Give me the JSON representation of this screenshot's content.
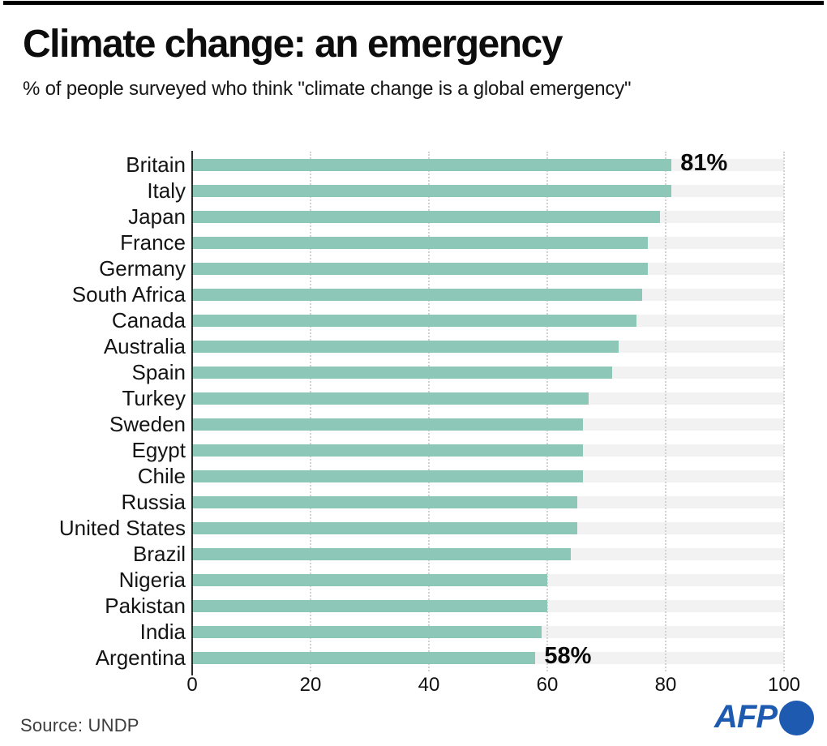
{
  "page": {
    "top_bar_color": "#000000",
    "background": "#ffffff"
  },
  "header": {
    "title": "Climate change: an emergency",
    "subtitle": "% of people surveyed who think \"climate change is a global emergency\""
  },
  "chart_data": {
    "type": "bar",
    "orientation": "horizontal",
    "title": "Climate change: an emergency",
    "subtitle": "% of people surveyed who think \"climate change is a global emergency\"",
    "xlabel": "",
    "ylabel": "",
    "xlim": [
      0,
      100
    ],
    "xticks": [
      "0",
      "20",
      "40",
      "60",
      "80",
      "100"
    ],
    "grid": "vertical-dotted",
    "legend": "none",
    "bar_color": "#8dc7b7",
    "track_color": "#f2f2f2",
    "categories": [
      "Britain",
      "Italy",
      "Japan",
      "France",
      "Germany",
      "South Africa",
      "Canada",
      "Australia",
      "Spain",
      "Turkey",
      "Sweden",
      "Egypt",
      "Chile",
      "Russia",
      "United States",
      "Brazil",
      "Nigeria",
      "Pakistan",
      "India",
      "Argentina"
    ],
    "values": [
      81,
      81,
      79,
      77,
      77,
      76,
      75,
      72,
      71,
      67,
      66,
      66,
      66,
      65,
      65,
      64,
      60,
      60,
      59,
      58
    ],
    "value_labels": {
      "Britain": "81%",
      "Argentina": "58%"
    }
  },
  "footer": {
    "source": "Source: UNDP",
    "logo_text": "AFP",
    "logo_color": "#1d5ab0"
  }
}
